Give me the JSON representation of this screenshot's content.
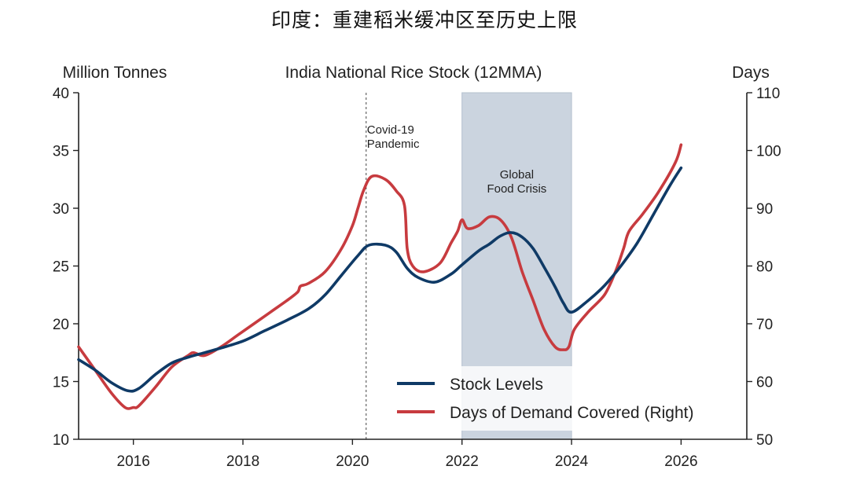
{
  "page": {
    "title": "印度：重建稻米缓冲区至历史上限"
  },
  "chart_data": {
    "type": "line",
    "title": "India National Rice Stock (12MMA)",
    "ylabel_left": "Million Tonnes",
    "ylabel_right": "Days",
    "xlim": [
      2015.0,
      2027.2
    ],
    "ylim_left": [
      10,
      40
    ],
    "ylim_right": [
      50,
      110
    ],
    "xticks": [
      "2016",
      "2018",
      "2020",
      "2022",
      "2024",
      "2026"
    ],
    "yticks_left": [
      "10",
      "15",
      "20",
      "25",
      "30",
      "35",
      "40"
    ],
    "yticks_right": [
      "50",
      "60",
      "70",
      "80",
      "90",
      "100",
      "110"
    ],
    "legend": {
      "placement": "bottom-right",
      "entries": [
        "Stock Levels",
        "Days of Demand Covered (Right)"
      ]
    },
    "colors": {
      "stock": "#0f3a66",
      "days": "#c73b3f",
      "shade": "#c2cdd9",
      "axis": "#222222"
    },
    "annotations": [
      {
        "kind": "vline",
        "x": 2020.25,
        "label": [
          "Covid-19",
          "Pandemic"
        ]
      },
      {
        "kind": "span",
        "x0": 2022.0,
        "x1": 2024.0,
        "label": [
          "Global",
          "Food Crisis"
        ]
      }
    ],
    "series": [
      {
        "name": "Stock Levels",
        "axis": "left",
        "x": [
          2015.0,
          2015.3,
          2015.6,
          2015.9,
          2016.1,
          2016.4,
          2016.7,
          2017.0,
          2017.3,
          2017.6,
          2018.0,
          2018.4,
          2018.8,
          2019.2,
          2019.5,
          2019.8,
          2020.1,
          2020.3,
          2020.6,
          2020.8,
          2021.0,
          2021.2,
          2021.5,
          2021.8,
          2022.0,
          2022.3,
          2022.5,
          2022.7,
          2022.9,
          2023.1,
          2023.3,
          2023.5,
          2023.7,
          2023.85,
          2024.0,
          2024.3,
          2024.6,
          2024.9,
          2025.2,
          2025.5,
          2025.8,
          2026.0
        ],
        "values": [
          16.9,
          16.0,
          14.9,
          14.2,
          14.4,
          15.6,
          16.6,
          17.1,
          17.5,
          17.9,
          18.5,
          19.4,
          20.3,
          21.3,
          22.5,
          24.2,
          25.9,
          26.8,
          26.8,
          26.2,
          24.8,
          24.0,
          23.6,
          24.3,
          25.1,
          26.3,
          26.9,
          27.6,
          27.9,
          27.5,
          26.5,
          24.9,
          23.2,
          21.8,
          21.0,
          22.0,
          23.3,
          25.0,
          27.0,
          29.5,
          32.0,
          33.5
        ]
      },
      {
        "name": "Days of Demand Covered (Right)",
        "axis": "right",
        "x": [
          2015.0,
          2015.3,
          2015.6,
          2015.85,
          2016.0,
          2016.1,
          2016.4,
          2016.7,
          2017.0,
          2017.1,
          2017.3,
          2017.6,
          2017.9,
          2018.2,
          2018.5,
          2018.8,
          2019.0,
          2019.05,
          2019.2,
          2019.5,
          2019.8,
          2020.0,
          2020.1,
          2020.2,
          2020.35,
          2020.6,
          2020.8,
          2020.95,
          2021.0,
          2021.1,
          2021.3,
          2021.6,
          2021.8,
          2021.92,
          2022.0,
          2022.1,
          2022.3,
          2022.5,
          2022.7,
          2022.9,
          2023.1,
          2023.3,
          2023.5,
          2023.7,
          2023.85,
          2023.95,
          2024.05,
          2024.3,
          2024.6,
          2024.8,
          2024.95,
          2025.05,
          2025.3,
          2025.6,
          2025.9,
          2026.0
        ],
        "values": [
          66,
          62,
          58,
          55.5,
          55.5,
          55.8,
          59,
          62.5,
          64.5,
          65,
          64.5,
          66,
          68,
          70,
          72,
          74,
          75.5,
          76.5,
          77,
          79,
          83,
          87,
          90,
          93,
          95.5,
          95,
          93,
          90.5,
          83,
          80,
          79,
          80.5,
          84,
          86,
          88,
          86.5,
          87,
          88.5,
          88,
          85,
          79,
          74,
          69,
          66,
          65.5,
          66,
          69,
          72,
          75,
          79,
          83,
          86,
          89,
          93,
          98,
          101
        ]
      }
    ]
  }
}
